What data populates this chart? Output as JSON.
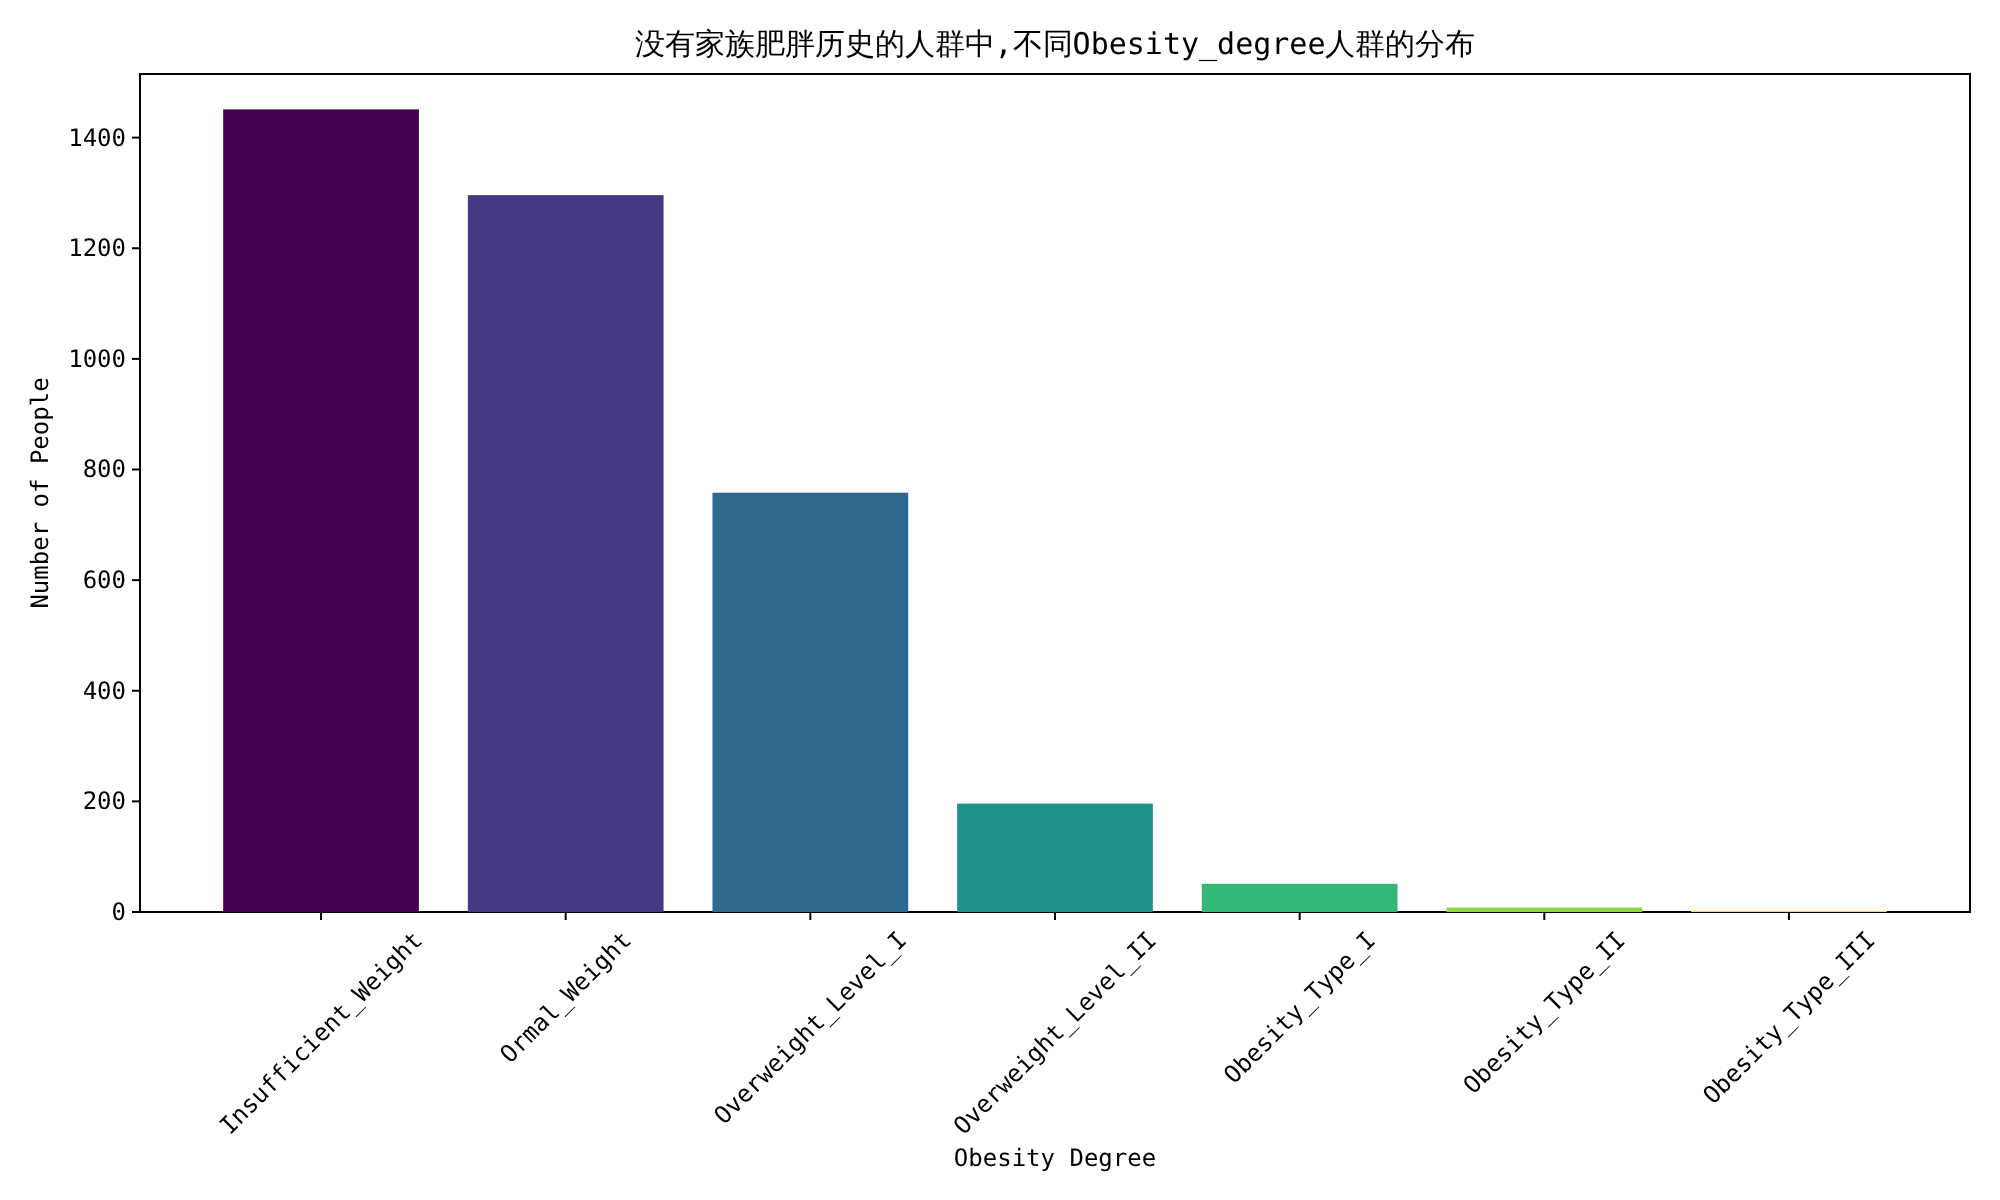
{
  "chart_data": {
    "type": "bar",
    "title": "没有家族肥胖历史的人群中,不同Obesity_degree人群的分布",
    "xlabel": "Obesity Degree",
    "ylabel": "Number of People",
    "categories": [
      "Insufficient_Weight",
      "Ormal_Weight",
      "Overweight_Level_I",
      "Overweight_Level_II",
      "Obesity_Type_I",
      "Obesity_Type_II",
      "Obesity_Type_III"
    ],
    "values": [
      1451,
      1296,
      758,
      196,
      51,
      8,
      2
    ],
    "colors": [
      "#440154",
      "#443983",
      "#31688e",
      "#21918c",
      "#35b779",
      "#90d743",
      "#fde725"
    ],
    "ylim": [
      0,
      1515
    ],
    "yticks": [
      0,
      200,
      400,
      600,
      800,
      1000,
      1200,
      1400
    ]
  }
}
